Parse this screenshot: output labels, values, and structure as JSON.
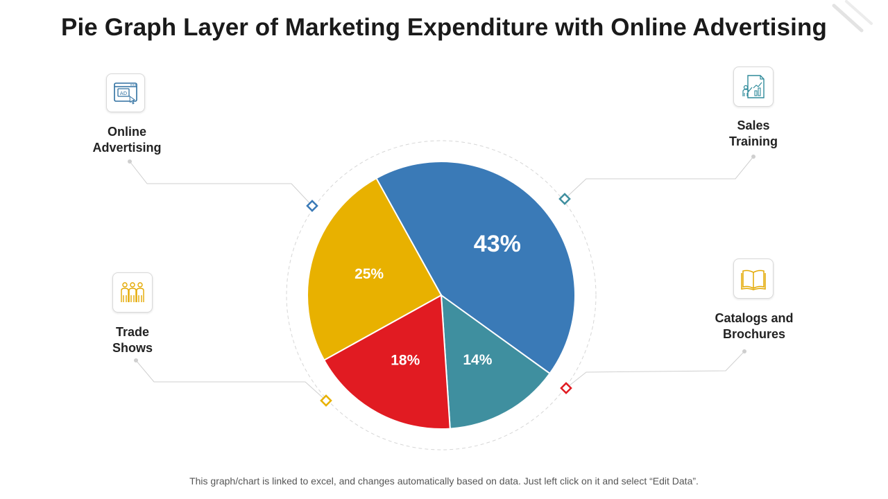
{
  "title": "Pie Graph Layer of Marketing Expenditure with Online Advertising",
  "footer": "This graph/chart is linked to excel, and changes automatically based on data. Just left click on it and select “Edit Data”.",
  "labels": {
    "online_advertising": [
      "Online",
      "Advertising"
    ],
    "sales_training": [
      "Sales",
      "Training"
    ],
    "trade_shows": [
      "Trade",
      "Shows"
    ],
    "catalogs_brochures": [
      "Catalogs and",
      "Brochures"
    ]
  },
  "icons": {
    "online_advertising": "ad-browser-icon",
    "sales_training": "presentation-chart-icon",
    "trade_shows": "people-group-icon",
    "catalogs_brochures": "open-book-icon"
  },
  "chart_data": {
    "type": "pie",
    "categories": [
      "Online Advertising",
      "Sales Training",
      "Catalogs and Brochures",
      "Trade Shows"
    ],
    "values": [
      43,
      14,
      18,
      25
    ],
    "data_labels": [
      "43%",
      "14%",
      "18%",
      "25%"
    ],
    "colors": [
      "#3a7ab7",
      "#3f8f9f",
      "#e11b22",
      "#e8b100"
    ],
    "title": "Pie Graph Layer of Marketing Expenditure with Online Advertising"
  }
}
